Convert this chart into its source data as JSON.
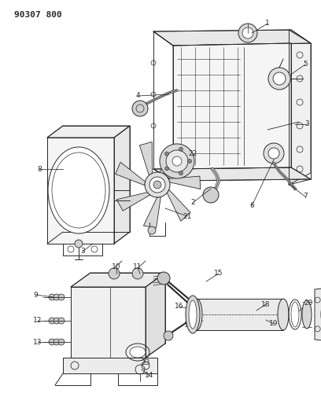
{
  "title": "90307 800",
  "bg_color": "#ffffff",
  "line_color": "#2a2a2a",
  "figsize": [
    4.08,
    5.33
  ],
  "dpi": 100
}
